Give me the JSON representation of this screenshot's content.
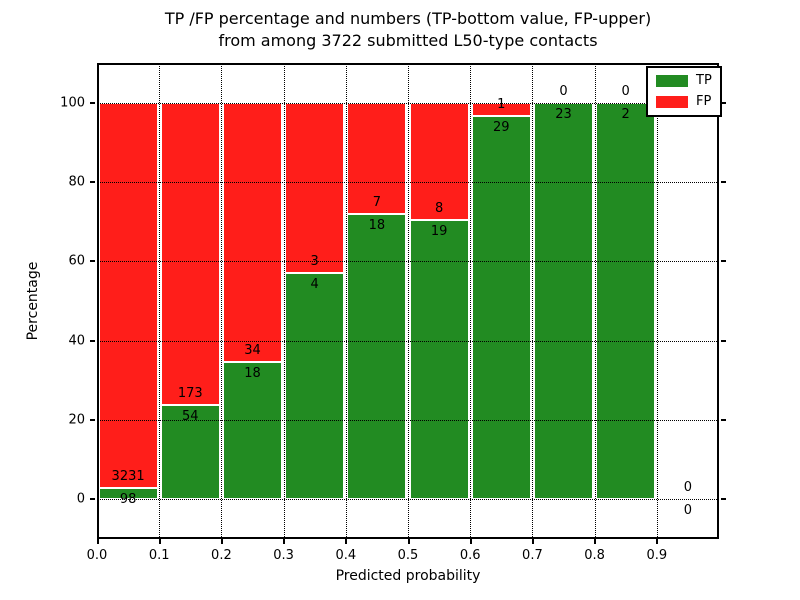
{
  "chart_data": {
    "type": "bar",
    "stacked": true,
    "normalized": "each bin scaled to 100%",
    "title": "TP /FP percentage and numbers (TP-bottom value, FP-upper) from among 3722 submitted L50-type contacts",
    "title_lines": [
      "TP /FP percentage and numbers (TP-bottom value, FP-upper)",
      "from among 3722 submitted L50-type contacts"
    ],
    "xlabel": "Predicted probability",
    "ylabel": "Percentage",
    "xlim": [
      0.0,
      1.0
    ],
    "ylim": [
      -10,
      110
    ],
    "xticks": [
      "0.0",
      "0.1",
      "0.2",
      "0.3",
      "0.4",
      "0.5",
      "0.6",
      "0.7",
      "0.8",
      "0.9"
    ],
    "yticks": [
      0,
      20,
      40,
      60,
      80,
      100
    ],
    "grid": true,
    "legend": {
      "position": "upper right",
      "entries": [
        {
          "label": "TP",
          "color": "#228b22"
        },
        {
          "label": "FP",
          "color": "#ff1e1a"
        }
      ]
    },
    "total_contacts": 3722,
    "bins": [
      {
        "range": [
          0.0,
          0.1
        ],
        "tp": 98,
        "fp": 3231
      },
      {
        "range": [
          0.1,
          0.2
        ],
        "tp": 54,
        "fp": 173
      },
      {
        "range": [
          0.2,
          0.3
        ],
        "tp": 18,
        "fp": 34
      },
      {
        "range": [
          0.3,
          0.4
        ],
        "tp": 4,
        "fp": 3
      },
      {
        "range": [
          0.4,
          0.5
        ],
        "tp": 18,
        "fp": 7
      },
      {
        "range": [
          0.5,
          0.6
        ],
        "tp": 19,
        "fp": 8
      },
      {
        "range": [
          0.6,
          0.7
        ],
        "tp": 29,
        "fp": 1
      },
      {
        "range": [
          0.7,
          0.8
        ],
        "tp": 23,
        "fp": 0
      },
      {
        "range": [
          0.8,
          0.9
        ],
        "tp": 2,
        "fp": 0
      },
      {
        "range": [
          0.9,
          1.0
        ],
        "tp": 0,
        "fp": 0
      }
    ]
  }
}
